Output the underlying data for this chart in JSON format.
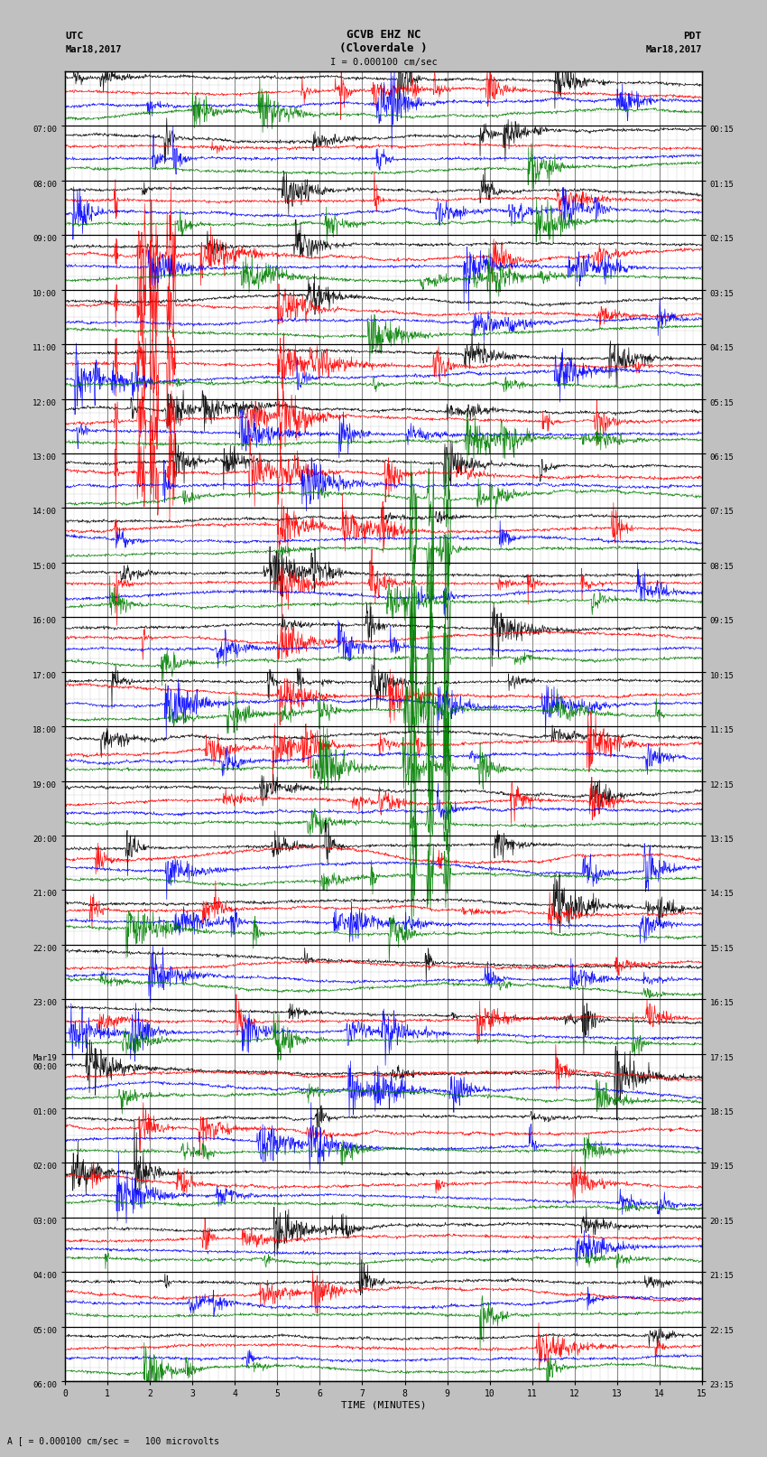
{
  "title_line1": "GCVB EHZ NC",
  "title_line2": "(Cloverdale )",
  "scale_label": "I = 0.000100 cm/sec",
  "utc_label": "UTC",
  "utc_date": "Mar18,2017",
  "pdt_label": "PDT",
  "pdt_date": "Mar18,2017",
  "bottom_label": "A [ = 0.000100 cm/sec =   100 microvolts",
  "xlabel": "TIME (MINUTES)",
  "left_times": [
    "07:00",
    "08:00",
    "09:00",
    "10:00",
    "11:00",
    "12:00",
    "13:00",
    "14:00",
    "15:00",
    "16:00",
    "17:00",
    "18:00",
    "19:00",
    "20:00",
    "21:00",
    "22:00",
    "23:00",
    "Mar19\n00:00",
    "01:00",
    "02:00",
    "03:00",
    "04:00",
    "05:00",
    "06:00"
  ],
  "right_times": [
    "00:15",
    "01:15",
    "02:15",
    "03:15",
    "04:15",
    "05:15",
    "06:15",
    "07:15",
    "08:15",
    "09:15",
    "10:15",
    "11:15",
    "12:15",
    "13:15",
    "14:15",
    "15:15",
    "16:15",
    "17:15",
    "18:15",
    "19:15",
    "20:15",
    "21:15",
    "22:15",
    "23:15"
  ],
  "n_rows": 24,
  "n_minutes": 15,
  "bg_color": "#ffffff",
  "grid_major_color": "#000000",
  "grid_minor_color": "#aaaaaa",
  "colors": [
    "black",
    "red",
    "blue",
    "green"
  ],
  "fig_width": 8.5,
  "fig_height": 16.13,
  "dpi": 100
}
